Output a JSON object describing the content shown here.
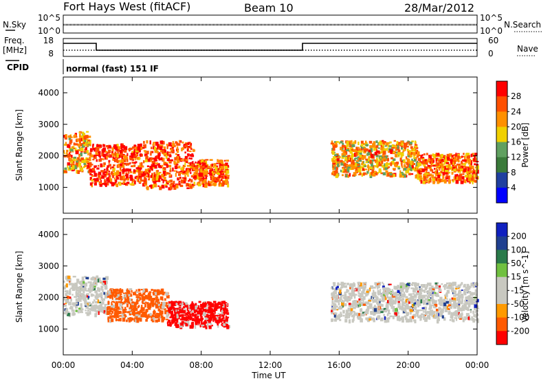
{
  "header": {
    "radar_title": "Fort Hays West (fitACF)",
    "beam": "Beam 10",
    "date": "28/Mar/2012"
  },
  "status_panels": {
    "nsky_label": "N.Sky",
    "nsearch_label": "N.Search",
    "noise_ticks": [
      "10^5",
      "10^0"
    ],
    "freq_label_1": "Freq.",
    "freq_label_2": "[MHz]",
    "freq_ticks": [
      "18",
      "8"
    ],
    "nave_label": "Nave",
    "nave_ticks": [
      "60",
      "0"
    ],
    "cpid_label": "CPID",
    "cpid_text": "normal (fast) 151 IF"
  },
  "colors": {
    "power_scale": [
      "#0000ff",
      "#2040a0",
      "#3a7a3a",
      "#60a060",
      "#f0d000",
      "#ff9000",
      "#ff5000",
      "#ff0000"
    ],
    "velocity_scale": [
      "#ff0000",
      "#ff5a00",
      "#ff9a00",
      "#c8c8c0",
      "#c8c8c0",
      "#70c040",
      "#2a7a4a",
      "#204090",
      "#1020c0"
    ],
    "ground_scatter": "#c8c8c0"
  },
  "chart_data": [
    {
      "type": "heatmap",
      "name": "power",
      "title": "",
      "xlabel": "Time UT",
      "ylabel": "Slant Range [km]",
      "x_ticks": [
        "00:00",
        "04:00",
        "08:00",
        "12:00",
        "16:00",
        "20:00",
        "00:00"
      ],
      "xlim_hours": [
        0,
        24
      ],
      "ylim_km": [
        180,
        4500
      ],
      "y_ticks": [
        1000,
        2000,
        3000,
        4000
      ],
      "colorbar": {
        "label": "Power [dB]",
        "ticks": [
          "28",
          "24",
          "20",
          "16",
          "12",
          "8",
          "4"
        ],
        "range": [
          0,
          30
        ]
      },
      "echo_regions": [
        {
          "t0": 0.0,
          "t1": 1.5,
          "r_lo": 1500,
          "r_hi": 2800,
          "peak_db": 22
        },
        {
          "t0": 1.5,
          "t1": 4.5,
          "r_lo": 1100,
          "r_hi": 2400,
          "peak_db": 30
        },
        {
          "t0": 4.5,
          "t1": 7.5,
          "r_lo": 1000,
          "r_hi": 2500,
          "peak_db": 30
        },
        {
          "t0": 7.5,
          "t1": 9.5,
          "r_lo": 1100,
          "r_hi": 1900,
          "peak_db": 28
        },
        {
          "t0": 15.5,
          "t1": 20.5,
          "r_lo": 1400,
          "r_hi": 2500,
          "peak_db": 20
        },
        {
          "t0": 20.5,
          "t1": 24.0,
          "r_lo": 1200,
          "r_hi": 2100,
          "peak_db": 26
        }
      ]
    },
    {
      "type": "heatmap",
      "name": "velocity",
      "title": "",
      "xlabel": "Time UT",
      "ylabel": "Slant Range [km]",
      "x_ticks": [
        "00:00",
        "04:00",
        "08:00",
        "12:00",
        "16:00",
        "20:00",
        "00:00"
      ],
      "xlim_hours": [
        0,
        24
      ],
      "ylim_km": [
        180,
        4500
      ],
      "y_ticks": [
        1000,
        2000,
        3000,
        4000
      ],
      "colorbar": {
        "label": "Velocity [m s^-1]",
        "ticks": [
          "200",
          "100",
          "50",
          "15",
          "-15",
          "-50",
          "-100",
          "-200"
        ],
        "range": [
          -250,
          250
        ]
      },
      "echo_regions": [
        {
          "t0": 0.0,
          "t1": 2.5,
          "r_lo": 1500,
          "r_hi": 2700,
          "velocity": 0,
          "class": "ground_scatter"
        },
        {
          "t0": 2.5,
          "t1": 6.0,
          "r_lo": 1300,
          "r_hi": 2300,
          "velocity": -80
        },
        {
          "t0": 6.0,
          "t1": 9.5,
          "r_lo": 1100,
          "r_hi": 1900,
          "velocity": -220
        },
        {
          "t0": 15.5,
          "t1": 24.0,
          "r_lo": 1300,
          "r_hi": 2500,
          "velocity": 0,
          "class": "ground_scatter"
        }
      ]
    }
  ]
}
